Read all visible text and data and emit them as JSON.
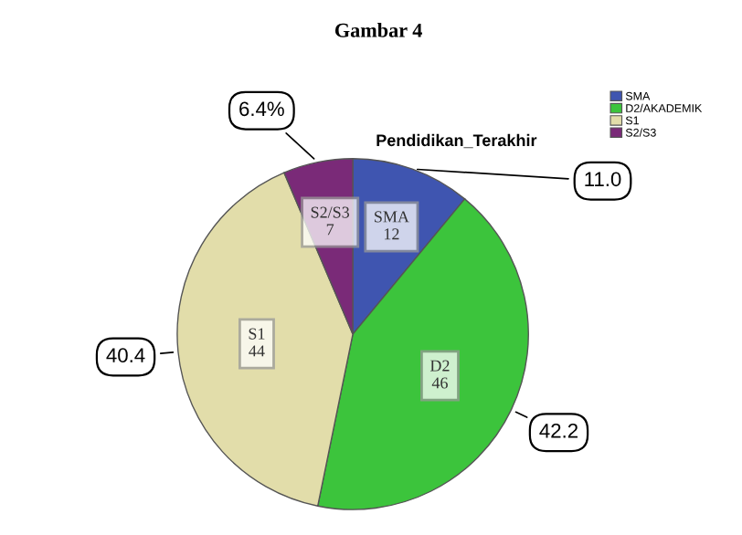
{
  "chart_data": {
    "type": "pie",
    "title": "Gambar 4",
    "subtitle": "Pendidikan_Terakhir",
    "categories": [
      "SMA",
      "D2/AKADEMIK",
      "S1",
      "S2/S3"
    ],
    "values": [
      11.0,
      42.2,
      40.4,
      6.4
    ],
    "colors": [
      "#3f55b0",
      "#3cc43c",
      "#e2ddaa",
      "#7a2a78"
    ],
    "value_labels": [
      "11.0",
      "42.2",
      "40.4",
      "6.4%"
    ],
    "annotations": [
      "SMA\n12",
      "D2\n46",
      "S1\n44",
      "S2/S3\n7"
    ],
    "legend": "right"
  }
}
